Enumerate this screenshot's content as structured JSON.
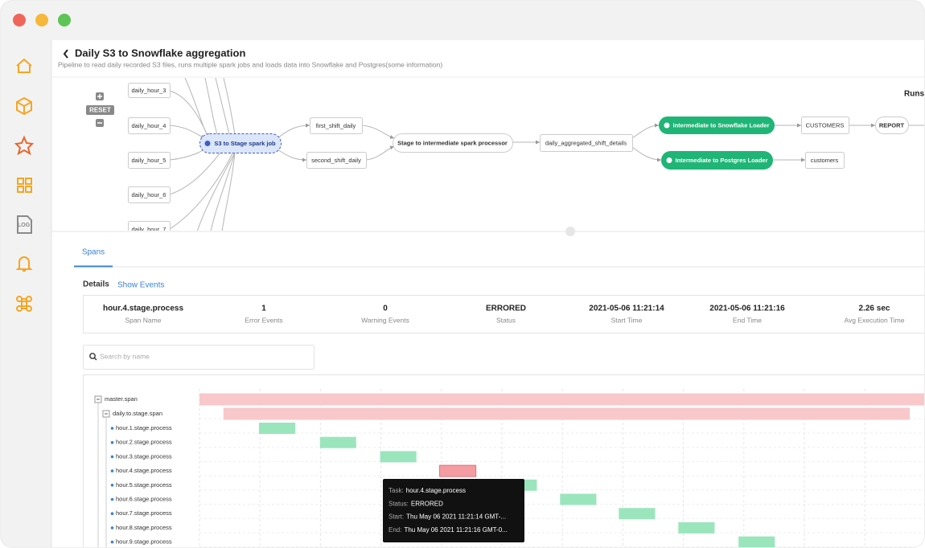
{
  "header": {
    "title": "Daily S3 to Snowflake aggregation",
    "subtitle": "Pipeline to read daily recorded S3 files, runs multiple spark jobs and loads data into Snowflake and Postgres(some information)"
  },
  "graph": {
    "reset": "RESET",
    "runs": "Runs",
    "nodes": [
      {
        "label": "daily_hour_3"
      },
      {
        "label": "daily_hour_4"
      },
      {
        "label": "daily_hour_5"
      },
      {
        "label": "daily_hour_6"
      },
      {
        "label": "daily_hour_7"
      },
      {
        "label": "S3 to Stage spark job"
      },
      {
        "label": "first_shift_daily"
      },
      {
        "label": "second_shift_daily"
      },
      {
        "label": "Stage to intermediate spark processor"
      },
      {
        "label": "daily_aggregated_shift_details"
      },
      {
        "label": "Intermediate to Snowflake Loader"
      },
      {
        "label": "Intermediate to Postgres Loader"
      },
      {
        "label": "CUSTOMERS"
      },
      {
        "label": "customers"
      },
      {
        "label": "REPORT"
      }
    ]
  },
  "tabs": [
    "Spans"
  ],
  "details": {
    "title": "Details",
    "link": "Show Events",
    "stats": [
      {
        "value": "hour.4.stage.process",
        "label": "Span Name"
      },
      {
        "value": 1,
        "label": "Error Events"
      },
      {
        "value": 0,
        "label": "Warning Events"
      },
      {
        "value": "ERRORED",
        "label": "Status"
      },
      {
        "value": "2021-05-06 11:21:14",
        "label": "Start Time"
      },
      {
        "value": "2021-05-06 11:21:16",
        "label": "End Time"
      },
      {
        "value": "2.26 sec",
        "label": "Avg Execution Time"
      }
    ]
  },
  "search": {
    "placeholder": "Search by name"
  },
  "timeline": {
    "spans": [
      {
        "name": "master.span",
        "start": 0,
        "end": 100,
        "color": "#f9c8cb"
      },
      {
        "name": "daily.to.stage.span",
        "start": 3.3,
        "end": 97.9,
        "color": "#f9c8cb"
      },
      {
        "name": "hour.1.stage.process",
        "start": 8.2,
        "end": 13.2,
        "color": "#9be5bd"
      },
      {
        "name": "hour.2.stage.process",
        "start": 16.6,
        "end": 21.6,
        "color": "#9be5bd"
      },
      {
        "name": "hour.3.stage.process",
        "start": 24.9,
        "end": 29.9,
        "color": "#9be5bd"
      },
      {
        "name": "hour.4.stage.process",
        "start": 33.1,
        "end": 38.1,
        "color": "#f59ca3"
      },
      {
        "name": "hour.5.stage.process",
        "start": 41.5,
        "end": 46.5,
        "color": "#9be5bd"
      },
      {
        "name": "hour.6.stage.process",
        "start": 49.7,
        "end": 54.7,
        "color": "#9be5bd"
      },
      {
        "name": "hour.7.stage.process",
        "start": 57.8,
        "end": 62.8,
        "color": "#9be5bd"
      },
      {
        "name": "hour.8.stage.process",
        "start": 66,
        "end": 71,
        "color": "#9be5bd"
      },
      {
        "name": "hour.9.stage.process",
        "start": 74.3,
        "end": 79.3,
        "color": "#9be5bd"
      }
    ]
  },
  "tooltip": [
    {
      "key": "Task:",
      "value": "hour.4.stage.process"
    },
    {
      "key": "Status:",
      "value": "ERRORED"
    },
    {
      "key": "Start:",
      "value": "Thu May 06 2021 11:21:14 GMT-..."
    },
    {
      "key": "End:",
      "value": "Thu May 06 2021 11:21:16 GMT-0..."
    }
  ]
}
